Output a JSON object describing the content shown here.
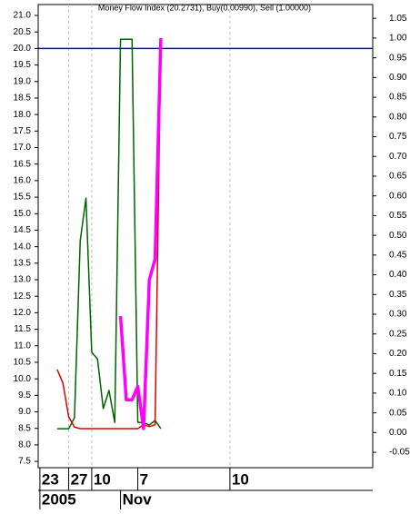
{
  "chart_data": {
    "type": "line",
    "title": "Money Flow Index (20.2731), Buy(0.00990), Sell (1.00000)",
    "x": [
      0,
      1,
      2,
      3,
      4,
      5,
      6,
      7,
      8,
      9,
      10,
      11,
      12,
      13,
      14,
      15,
      16,
      17,
      18
    ],
    "xlim": [
      -3.3,
      54.8
    ],
    "xticks": [
      {
        "value": -3,
        "label": "23"
      },
      {
        "value": 2,
        "label": "27"
      },
      {
        "value": 6,
        "label": "10"
      },
      {
        "value": 14,
        "label": "7"
      },
      {
        "value": 30,
        "label": "10"
      }
    ],
    "periods": [
      {
        "value": -3,
        "label": "2005"
      },
      {
        "value": 11,
        "label": "Nov"
      }
    ],
    "ylim": [
      7.31,
      21.33
    ],
    "yticks": [
      7.5,
      {
        "value": 8,
        "label": "8.0"
      },
      8.5,
      {
        "value": 9,
        "label": "9.0"
      },
      9.5,
      {
        "value": 10,
        "label": "10.0"
      },
      10.5,
      {
        "value": 11,
        "label": "11.0"
      },
      11.5,
      {
        "value": 12,
        "label": "12.0"
      },
      12.5,
      {
        "value": 13,
        "label": "13.0"
      },
      13.5,
      {
        "value": 14,
        "label": "14.0"
      },
      14.5,
      {
        "value": 15,
        "label": "15.0"
      },
      15.5,
      {
        "value": 16,
        "label": "16.0"
      },
      16.5,
      {
        "value": 17,
        "label": "17.0"
      },
      17.5,
      {
        "value": 18,
        "label": "18.0"
      },
      18.5,
      {
        "value": 19,
        "label": "19.0"
      },
      19.5,
      {
        "value": 20,
        "label": "20.0"
      },
      20.5,
      {
        "value": 21,
        "label": "21.0"
      }
    ],
    "y2lim": [
      -0.089,
      1.085
    ],
    "y2ticks": [
      -0.05,
      {
        "value": 0,
        "label": "0.00"
      },
      0.05,
      {
        "value": 0.1,
        "label": "0.10"
      },
      0.15,
      {
        "value": 0.2,
        "label": "0.20"
      },
      0.25,
      {
        "value": 0.3,
        "label": "0.30"
      },
      0.35,
      {
        "value": 0.4,
        "label": "0.40"
      },
      0.45,
      {
        "value": 0.5,
        "label": "0.50"
      },
      0.55,
      {
        "value": 0.6,
        "label": "0.60"
      },
      0.65,
      {
        "value": 0.7,
        "label": "0.70"
      },
      0.75,
      {
        "value": 0.8,
        "label": "0.80"
      },
      0.85,
      {
        "value": 0.9,
        "label": "0.90"
      },
      0.95,
      {
        "value": 1,
        "label": "1.00"
      },
      1.05
    ],
    "grid_x": [
      2,
      6,
      30
    ],
    "reference_line": {
      "value": 20,
      "color": "#0000cc"
    },
    "series": [
      {
        "color": "#006400",
        "width": 1.5,
        "values": [
          8.49,
          8.49,
          8.49,
          8.82,
          14.18,
          15.47,
          10.8,
          10.6,
          9.1,
          9.65,
          8.68,
          20.28,
          20.28,
          20.28,
          8.68,
          8.68,
          8.6,
          8.74,
          8.49
        ]
      },
      {
        "color": "#e00000",
        "width": 1.5,
        "axis": "y2",
        "values": [
          0.16,
          0.125,
          0.04,
          0.014,
          0.01,
          0.01,
          0.01,
          0.01,
          0.01,
          0.01,
          0.01,
          0.01,
          0.01,
          0.01,
          0.01,
          0.02,
          0.015,
          0.02,
          1.0
        ]
      },
      {
        "color": "#ff00ff",
        "width": 3.5,
        "axis": "y2",
        "values": [
          null,
          null,
          null,
          null,
          null,
          null,
          null,
          null,
          null,
          null,
          null,
          0.295,
          0.083,
          0.083,
          0.117,
          0.01,
          0.387,
          0.44,
          1.0
        ]
      }
    ]
  }
}
